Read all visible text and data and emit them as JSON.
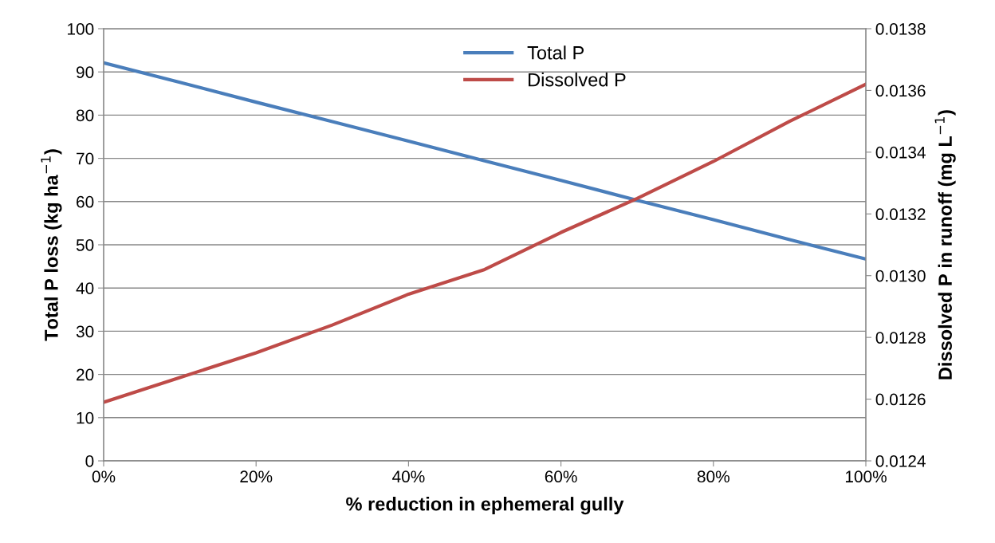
{
  "chart_data": {
    "type": "line",
    "xlabel": "% reduction in ephemeral gully",
    "ylabel": "Total P loss (kg ha$^{−1}$)",
    "y2label": "Dissolved P in runoff (mg L$^{−1}$)",
    "x": [
      0,
      10,
      20,
      30,
      40,
      50,
      60,
      70,
      80,
      90,
      100
    ],
    "series": [
      {
        "name": "Total P",
        "color": "#4a7ebb",
        "values": [
          92.1,
          87.6,
          83.0,
          78.5,
          74.0,
          69.4,
          64.9,
          60.3,
          55.8,
          51.2,
          46.7
        ]
      },
      {
        "name": "Dissolved P",
        "color": "#be4b48",
        "axis": "y2",
        "values": [
          0.01259,
          0.01267,
          0.01275,
          0.01284,
          0.01294,
          0.01302,
          0.01314,
          0.01325,
          0.01337,
          0.0135,
          0.01362
        ]
      }
    ],
    "xlim": [
      0,
      100
    ],
    "xticks": [
      {
        "value": 0,
        "label": "0%"
      },
      {
        "value": 20,
        "label": "20%"
      },
      {
        "value": 40,
        "label": "40%"
      },
      {
        "value": 60,
        "label": "60%"
      },
      {
        "value": 80,
        "label": "80%"
      },
      {
        "value": 100,
        "label": "100%"
      }
    ],
    "ylim": [
      0,
      100
    ],
    "yticks": [
      0,
      10,
      20,
      30,
      40,
      50,
      60,
      70,
      80,
      90,
      100
    ],
    "y2lim": [
      0.0124,
      0.0138
    ],
    "y2ticks": [
      0.0124,
      0.0126,
      0.0128,
      {
        "value": 0.013,
        "label": "0.0130"
      },
      0.0132,
      0.0134,
      0.0136,
      0.0138
    ],
    "grid": "y",
    "legend": "top",
    "line_style": "solid",
    "marker": "none"
  }
}
